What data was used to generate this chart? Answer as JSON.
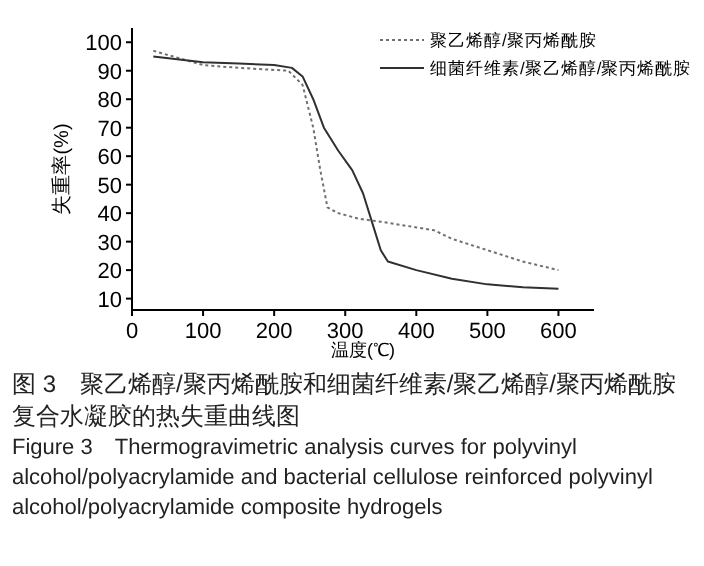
{
  "chart_data": {
    "type": "line",
    "xlabel": "温度(℃)",
    "ylabel": "失重率(%)",
    "xlim": [
      0,
      650
    ],
    "ylim": [
      6,
      105
    ],
    "xticks": [
      0,
      100,
      200,
      300,
      400,
      500,
      600
    ],
    "yticks": [
      10,
      20,
      30,
      40,
      50,
      60,
      70,
      80,
      90,
      100
    ],
    "grid": false,
    "legend": "top right",
    "marker": "none",
    "series": [
      {
        "name": "聚乙烯醇/聚丙烯酰胺",
        "color": "#707070",
        "line_style": "dotted",
        "x": [
          30,
          100,
          150,
          220,
          240,
          255,
          265,
          275,
          290,
          320,
          350,
          400,
          425,
          450,
          500,
          550,
          600
        ],
        "values": [
          97,
          92,
          91,
          90,
          85,
          70,
          55,
          42,
          40,
          38,
          37,
          35,
          34,
          31,
          27,
          23,
          20
        ]
      },
      {
        "name": "细菌纤维素/聚乙烯醇/聚丙烯酰胺",
        "color": "#303030",
        "line_style": "solid",
        "x": [
          30,
          100,
          150,
          200,
          225,
          240,
          255,
          270,
          290,
          310,
          325,
          340,
          350,
          360,
          400,
          450,
          500,
          550,
          600
        ],
        "values": [
          95,
          93,
          92.5,
          92,
          91,
          88,
          80,
          70,
          62,
          55,
          47,
          35,
          27,
          23,
          20,
          17,
          15,
          14,
          13.5
        ]
      }
    ],
    "annotations": [
      "图 3　聚乙烯醇/聚丙烯酰胺和细菌纤维素/聚乙烯醇/聚丙烯酰胺复合水凝胶的热失重曲线图",
      "Figure 3　Thermogravimetric analysis curves for polyvinyl alcohol/polyacrylamide and bacterial cellulose reinforced polyvinyl alcohol/polyacrylamide composite hydrogels"
    ]
  }
}
